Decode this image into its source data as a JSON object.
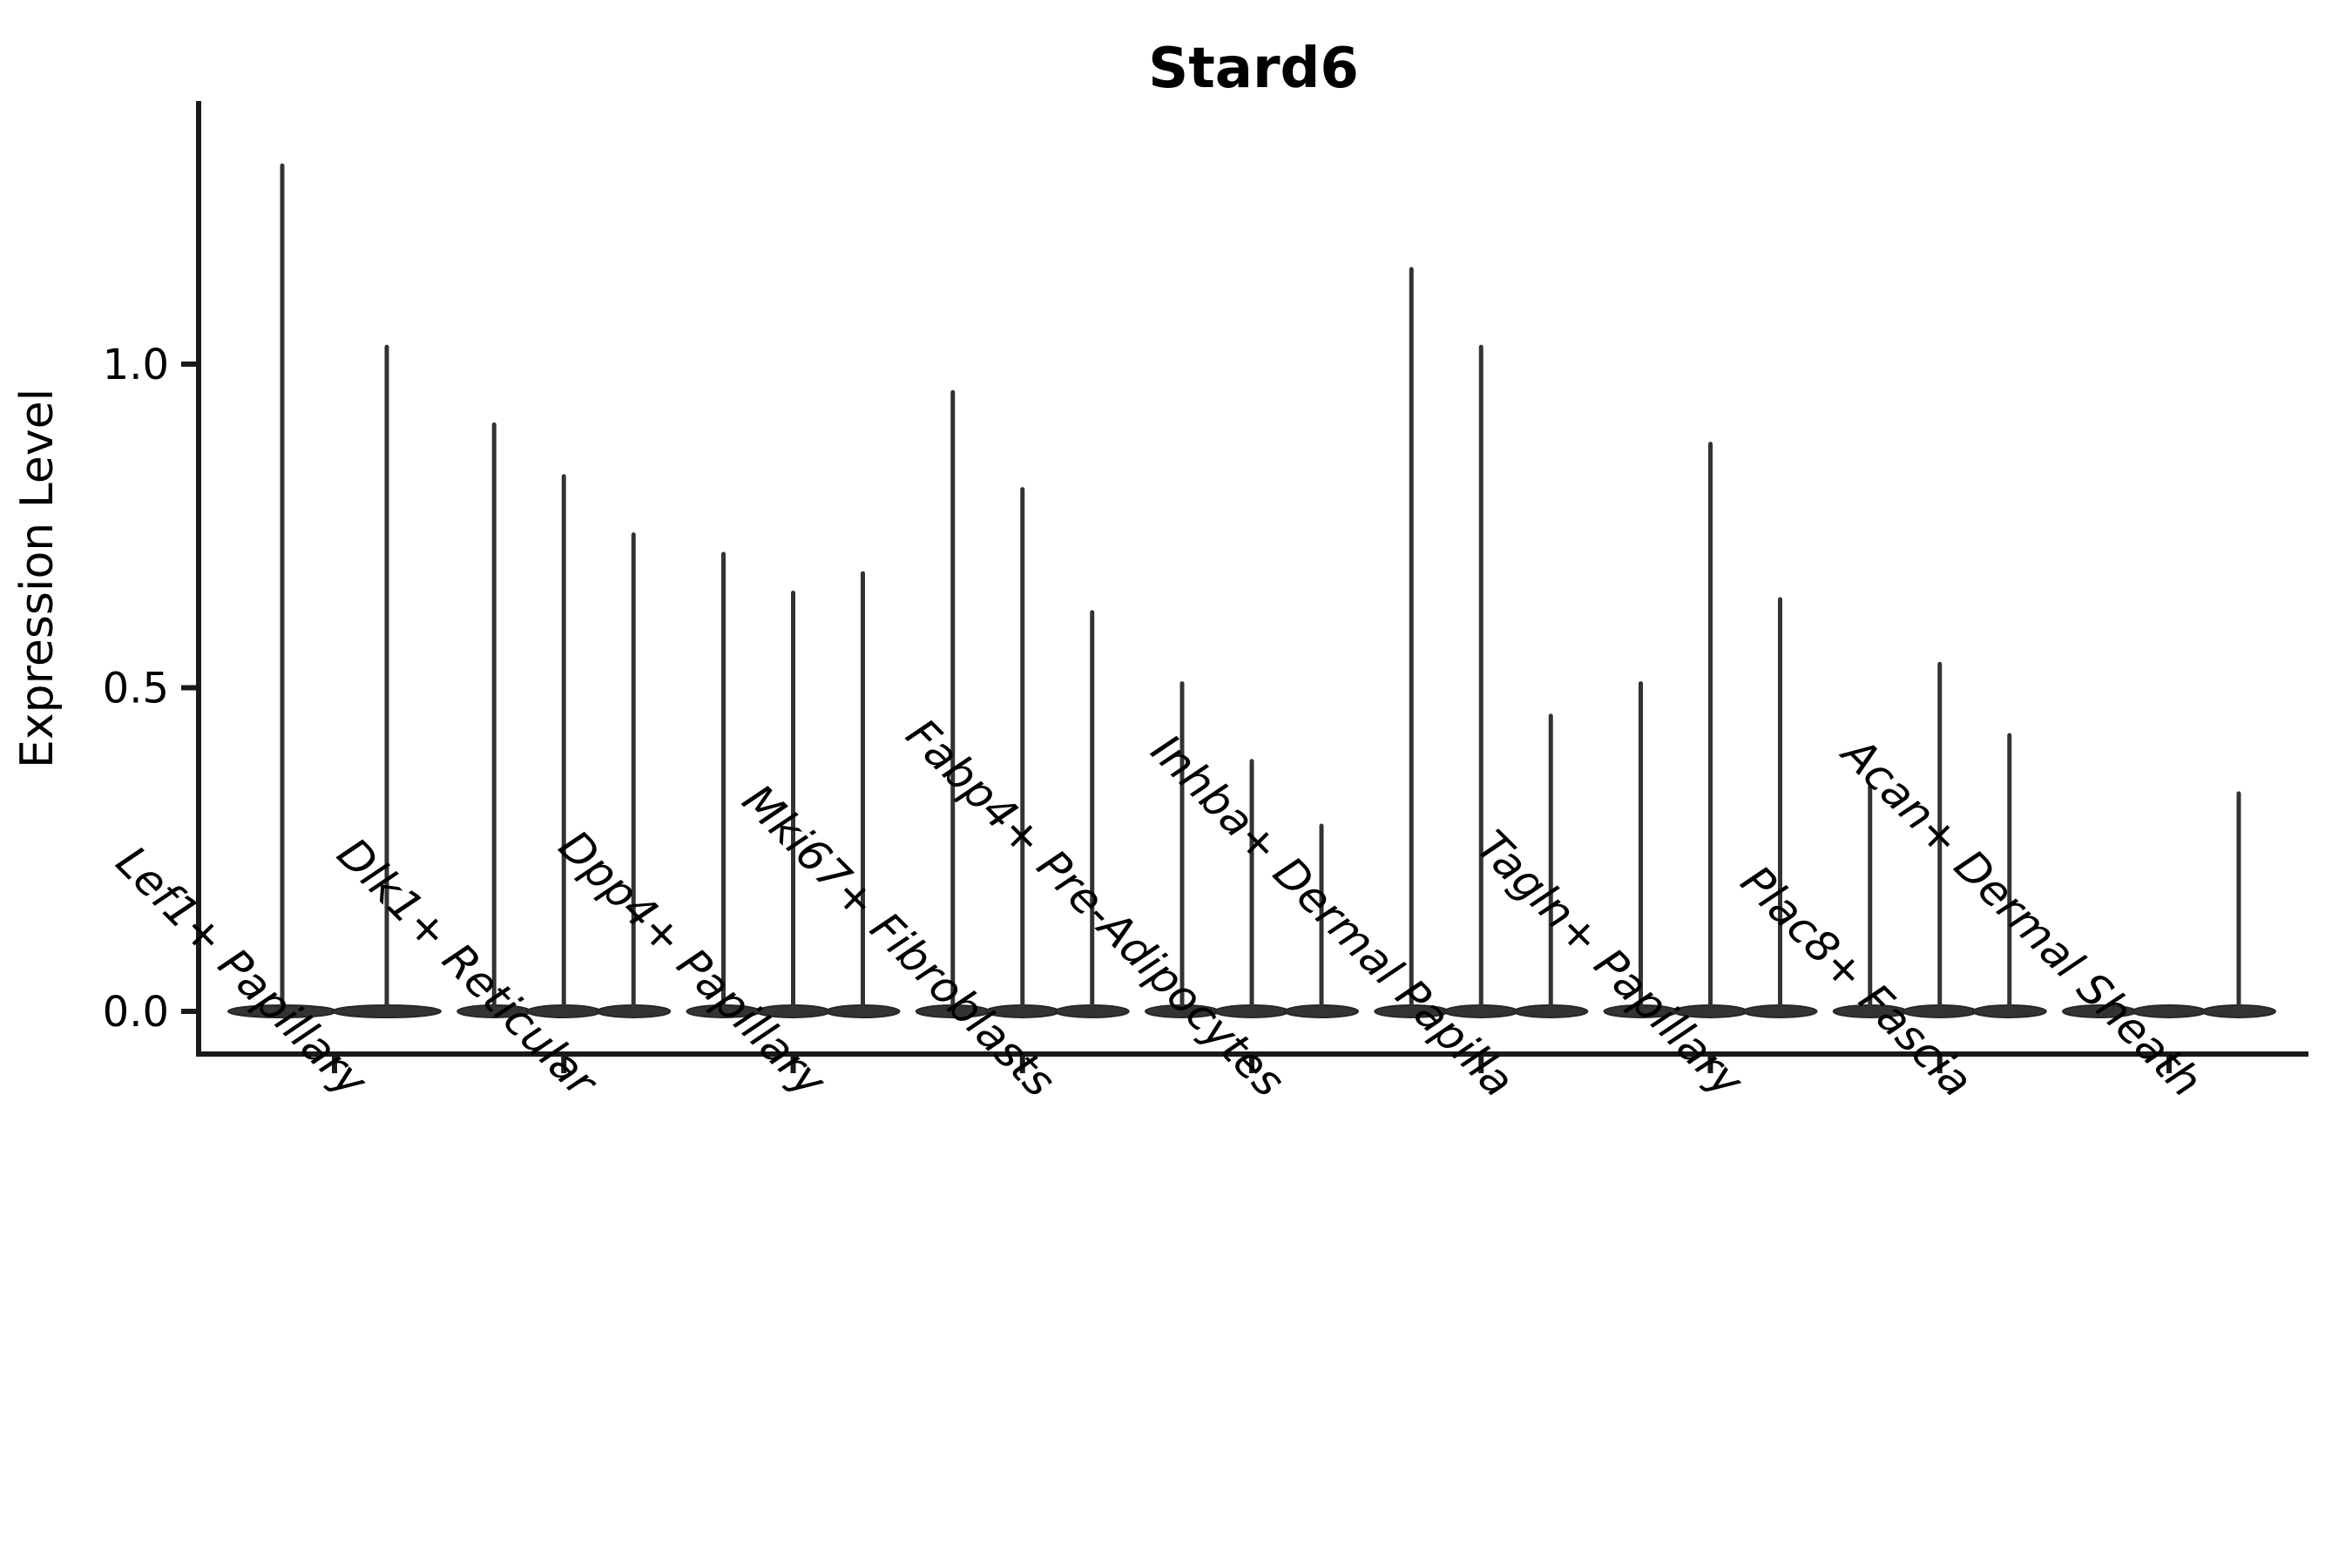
{
  "figure": {
    "title": "Stard6",
    "ylabel": "Expression Level"
  },
  "style": {
    "background": "#ffffff",
    "ink": "#000000",
    "spine_color": "#1a1a1a",
    "violin_fill": "#333333",
    "violin_stroke": "#262626"
  },
  "chart_data": {
    "type": "violin",
    "title": "Stard6",
    "xlabel": "",
    "ylabel": "Expression Level",
    "ylim": [
      -0.07,
      1.4
    ],
    "grid": false,
    "legend": "none",
    "orientation": "vertical",
    "shape_note": "Each violin is a near-flat pancake of density at 0 with a thin vertical tail rising to its maximum expression value; groups contain 2-3 violins.",
    "yticks": [
      {
        "value": 0.0,
        "label": "0.0"
      },
      {
        "value": 0.5,
        "label": "0.5"
      },
      {
        "value": 1.0,
        "label": "1.0"
      }
    ],
    "categories": [
      "Lef1+ Papillary",
      "Dlk1+ Reticular",
      "Dpp4+ Papillary",
      "Mki67+ Fibroblasts",
      "Fabp4+ Pre-Adipocytes",
      "Inhba+ Dermal Papilla",
      "Tagln+ Papillary",
      "Plac8+ Fascia",
      "Acan+ Dermal Sheath"
    ],
    "series": [
      {
        "category": "Lef1+ Papillary",
        "violin_max": [
          1.31,
          1.03
        ]
      },
      {
        "category": "Dlk1+ Reticular",
        "violin_max": [
          0.91,
          0.83,
          0.74
        ]
      },
      {
        "category": "Dpp4+ Papillary",
        "violin_max": [
          0.71,
          0.65,
          0.68
        ]
      },
      {
        "category": "Mki67+ Fibroblasts",
        "violin_max": [
          0.96,
          0.81,
          0.62
        ]
      },
      {
        "category": "Fabp4+ Pre-Adipocytes",
        "violin_max": [
          0.51,
          0.39,
          0.29
        ]
      },
      {
        "category": "Inhba+ Dermal Papilla",
        "violin_max": [
          1.15,
          1.03,
          0.46
        ]
      },
      {
        "category": "Tagln+ Papillary",
        "violin_max": [
          0.51,
          0.88,
          0.64
        ]
      },
      {
        "category": "Plac8+ Fascia",
        "violin_max": [
          0.35,
          0.54,
          0.43
        ]
      },
      {
        "category": "Acan+ Dermal Sheath",
        "violin_max": [
          0.0,
          0.0,
          0.34
        ]
      }
    ]
  }
}
